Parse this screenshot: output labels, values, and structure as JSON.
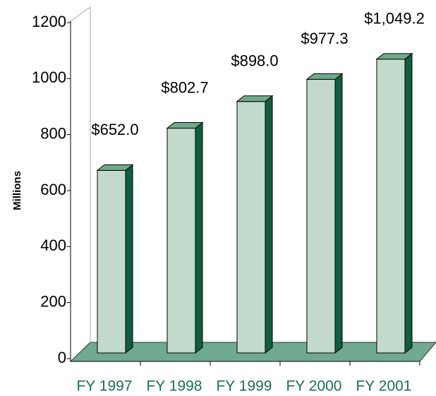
{
  "chart_data": {
    "type": "bar3d",
    "ylabel": "Millions",
    "categories": [
      "FY 1997",
      "FY 1998",
      "FY 1999",
      "FY 2000",
      "FY 2001"
    ],
    "values": [
      652.0,
      802.7,
      898.0,
      977.3,
      1049.2
    ],
    "value_labels": [
      "$652.0",
      "$802.7",
      "$898.0",
      "$977.3",
      "$1,049.2"
    ],
    "color": "#c2dacb",
    "side_color": "#0d5f40",
    "top_color": "#6fa98a",
    "floor_color": "#6fa991",
    "ylim": [
      0,
      1200
    ],
    "yticks": [
      0,
      200,
      400,
      600,
      800,
      1000,
      1200
    ]
  }
}
